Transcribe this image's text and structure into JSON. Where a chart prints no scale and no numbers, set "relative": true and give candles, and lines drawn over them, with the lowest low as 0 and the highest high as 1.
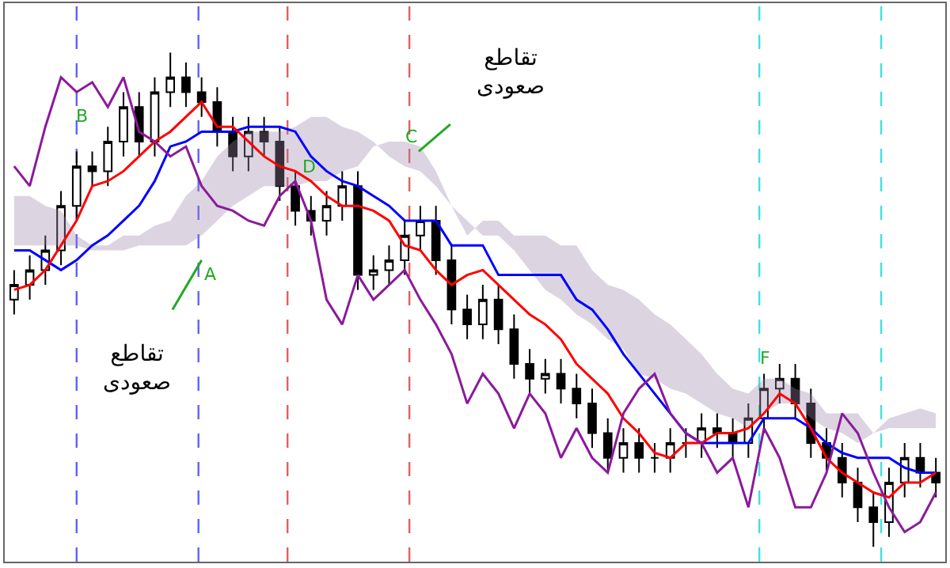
{
  "chart_data": {
    "type": "candlestick",
    "relative": true,
    "color": "#000000",
    "tick_labels": false,
    "categories": [
      null,
      null,
      null,
      null,
      null,
      null,
      null,
      null,
      null,
      null,
      null,
      null,
      null,
      null,
      null,
      null,
      null,
      null,
      null,
      null,
      null,
      null,
      null,
      null,
      null,
      null,
      null,
      null,
      null,
      null,
      null,
      null,
      null,
      null,
      null,
      null,
      null,
      null,
      null,
      null,
      null,
      null,
      null,
      null,
      null,
      null,
      null,
      null,
      null,
      null,
      null,
      null,
      null,
      null,
      null,
      null,
      null,
      null,
      null,
      null
    ],
    "ohlc": [
      [
        0.5,
        0.56,
        0.47,
        0.53
      ],
      [
        0.53,
        0.59,
        0.5,
        0.56
      ],
      [
        0.56,
        0.63,
        0.53,
        0.6
      ],
      [
        0.6,
        0.72,
        0.57,
        0.69
      ],
      [
        0.69,
        0.8,
        0.66,
        0.77
      ],
      [
        0.77,
        0.8,
        0.73,
        0.76
      ],
      [
        0.76,
        0.85,
        0.73,
        0.82
      ],
      [
        0.82,
        0.92,
        0.79,
        0.89
      ],
      [
        0.89,
        0.92,
        0.79,
        0.82
      ],
      [
        0.82,
        0.95,
        0.79,
        0.92
      ],
      [
        0.92,
        1.0,
        0.89,
        0.95
      ],
      [
        0.95,
        0.98,
        0.89,
        0.92
      ],
      [
        0.92,
        0.95,
        0.87,
        0.9
      ],
      [
        0.9,
        0.93,
        0.81,
        0.84
      ],
      [
        0.84,
        0.87,
        0.76,
        0.79
      ],
      [
        0.79,
        0.87,
        0.76,
        0.84
      ],
      [
        0.84,
        0.87,
        0.79,
        0.82
      ],
      [
        0.82,
        0.85,
        0.7,
        0.73
      ],
      [
        0.73,
        0.76,
        0.65,
        0.68
      ],
      [
        0.68,
        0.71,
        0.63,
        0.66
      ],
      [
        0.66,
        0.72,
        0.63,
        0.69
      ],
      [
        0.69,
        0.76,
        0.66,
        0.73
      ],
      [
        0.73,
        0.76,
        0.52,
        0.55
      ],
      [
        0.55,
        0.59,
        0.52,
        0.56
      ],
      [
        0.56,
        0.61,
        0.53,
        0.58
      ],
      [
        0.58,
        0.66,
        0.55,
        0.63
      ],
      [
        0.63,
        0.69,
        0.6,
        0.66
      ],
      [
        0.66,
        0.69,
        0.55,
        0.58
      ],
      [
        0.58,
        0.61,
        0.45,
        0.48
      ],
      [
        0.48,
        0.51,
        0.42,
        0.45
      ],
      [
        0.45,
        0.53,
        0.42,
        0.5
      ],
      [
        0.5,
        0.53,
        0.41,
        0.44
      ],
      [
        0.44,
        0.47,
        0.34,
        0.37
      ],
      [
        0.37,
        0.4,
        0.31,
        0.34
      ],
      [
        0.34,
        0.38,
        0.31,
        0.35
      ],
      [
        0.35,
        0.38,
        0.29,
        0.32
      ],
      [
        0.32,
        0.35,
        0.26,
        0.29
      ],
      [
        0.29,
        0.32,
        0.2,
        0.23
      ],
      [
        0.23,
        0.26,
        0.15,
        0.18
      ],
      [
        0.18,
        0.24,
        0.15,
        0.21
      ],
      [
        0.21,
        0.24,
        0.15,
        0.18
      ],
      [
        0.18,
        0.21,
        0.15,
        0.18
      ],
      [
        0.18,
        0.24,
        0.15,
        0.21
      ],
      [
        0.21,
        0.24,
        0.18,
        0.21
      ],
      [
        0.21,
        0.27,
        0.18,
        0.24
      ],
      [
        0.24,
        0.27,
        0.2,
        0.23
      ],
      [
        0.23,
        0.26,
        0.18,
        0.21
      ],
      [
        0.21,
        0.29,
        0.18,
        0.26
      ],
      [
        0.26,
        0.35,
        0.23,
        0.32
      ],
      [
        0.32,
        0.37,
        0.29,
        0.34
      ],
      [
        0.34,
        0.37,
        0.26,
        0.29
      ],
      [
        0.29,
        0.32,
        0.18,
        0.21
      ],
      [
        0.21,
        0.24,
        0.15,
        0.18
      ],
      [
        0.18,
        0.21,
        0.1,
        0.13
      ],
      [
        0.13,
        0.16,
        0.05,
        0.08
      ],
      [
        0.08,
        0.11,
        0.0,
        0.05
      ],
      [
        0.05,
        0.16,
        0.02,
        0.13
      ],
      [
        0.13,
        0.21,
        0.1,
        0.18
      ],
      [
        0.18,
        0.21,
        0.12,
        0.15
      ],
      [
        0.15,
        0.18,
        0.1,
        0.13
      ]
    ],
    "series": [
      {
        "type": "line",
        "color": "#9a88a8",
        "values": [
          null,
          null,
          null,
          null,
          null,
          null,
          null,
          null,
          null,
          null,
          null,
          null,
          null,
          null,
          null,
          null,
          null,
          null,
          null,
          null,
          null,
          null,
          null,
          null,
          null,
          null,
          null,
          null,
          null,
          null,
          null,
          null,
          null,
          null,
          null,
          null,
          null,
          null,
          null,
          null,
          null,
          null,
          null,
          null,
          null,
          null,
          null,
          null,
          null,
          null,
          null,
          null,
          null,
          null,
          null,
          null,
          null,
          null,
          null,
          null
        ],
        "upper": [
          0.71,
          0.71,
          0.69,
          0.68,
          0.63,
          0.61,
          0.61,
          0.63,
          0.63,
          0.65,
          0.66,
          0.71,
          0.74,
          0.79,
          0.82,
          0.84,
          0.84,
          0.84,
          0.85,
          0.87,
          0.87,
          0.85,
          0.84,
          0.82,
          0.79,
          0.77,
          0.76,
          0.73,
          0.69,
          0.66,
          0.63,
          0.63,
          0.6,
          0.56,
          0.52,
          0.5,
          0.47,
          0.45,
          0.42,
          0.4,
          0.35,
          0.34,
          0.32,
          0.31,
          0.29,
          0.27,
          0.26,
          0.24,
          0.27,
          0.29,
          0.29,
          0.26,
          0.24,
          0.23,
          0.21,
          0.23,
          0.26,
          0.27,
          0.28,
          0.27
        ],
        "lower": [
          0.61,
          0.61,
          0.61,
          0.61,
          0.61,
          0.6,
          0.6,
          0.6,
          0.61,
          0.61,
          0.61,
          0.61,
          0.63,
          0.66,
          0.69,
          0.71,
          0.73,
          0.73,
          0.73,
          0.74,
          0.74,
          0.76,
          0.77,
          0.81,
          0.82,
          0.82,
          0.81,
          0.76,
          0.69,
          0.63,
          0.66,
          0.66,
          0.63,
          0.63,
          0.63,
          0.61,
          0.61,
          0.56,
          0.53,
          0.52,
          0.5,
          0.47,
          0.45,
          0.42,
          0.39,
          0.35,
          0.32,
          0.31,
          0.34,
          0.34,
          0.32,
          0.31,
          0.27,
          0.27,
          0.27,
          0.23,
          0.24,
          0.24,
          0.24,
          0.24
        ]
      },
      {
        "type": "line",
        "color": "#0000ff",
        "values": [
          0.6,
          0.6,
          0.58,
          0.56,
          0.58,
          0.61,
          0.63,
          0.66,
          0.69,
          0.74,
          0.81,
          0.82,
          0.84,
          0.84,
          0.84,
          0.85,
          0.85,
          0.85,
          0.84,
          0.79,
          0.76,
          0.74,
          0.73,
          0.71,
          0.69,
          0.66,
          0.66,
          0.66,
          0.61,
          0.61,
          0.61,
          0.55,
          0.55,
          0.55,
          0.55,
          0.55,
          0.5,
          0.48,
          0.44,
          0.39,
          0.35,
          0.31,
          0.27,
          0.23,
          0.21,
          0.21,
          0.21,
          0.21,
          0.26,
          0.26,
          0.26,
          0.24,
          0.21,
          0.19,
          0.18,
          0.18,
          0.18,
          0.16,
          0.15,
          0.15
        ]
      },
      {
        "type": "line",
        "color": "#ff0000",
        "values": [
          0.52,
          0.53,
          0.56,
          0.61,
          0.66,
          0.73,
          0.74,
          0.76,
          0.79,
          0.82,
          0.84,
          0.87,
          0.9,
          0.85,
          0.85,
          0.82,
          0.79,
          0.77,
          0.76,
          0.74,
          0.71,
          0.69,
          0.69,
          0.68,
          0.66,
          0.61,
          0.6,
          0.56,
          0.53,
          0.55,
          0.56,
          0.53,
          0.5,
          0.47,
          0.45,
          0.42,
          0.37,
          0.34,
          0.31,
          0.26,
          0.23,
          0.19,
          0.18,
          0.21,
          0.21,
          0.23,
          0.23,
          0.24,
          0.27,
          0.31,
          0.29,
          0.24,
          0.18,
          0.15,
          0.13,
          0.11,
          0.1,
          0.13,
          0.13,
          0.15
        ]
      },
      {
        "type": "line",
        "color": "#8b1a9b",
        "values": [
          0.77,
          0.73,
          0.85,
          0.95,
          0.92,
          0.94,
          0.89,
          0.95,
          0.84,
          0.82,
          0.79,
          0.81,
          0.73,
          0.69,
          0.68,
          0.66,
          0.65,
          0.71,
          0.74,
          0.66,
          0.5,
          0.45,
          0.55,
          0.5,
          0.53,
          0.56,
          0.5,
          0.45,
          0.39,
          0.29,
          0.35,
          0.31,
          0.24,
          0.31,
          0.27,
          0.18,
          0.24,
          0.18,
          0.15,
          0.27,
          0.32,
          0.35,
          0.27,
          0.23,
          0.21,
          0.15,
          0.18,
          0.08,
          0.24,
          0.18,
          0.08,
          0.08,
          0.15,
          0.27,
          0.23,
          0.15,
          0.08,
          0.03,
          0.05,
          0.11
        ]
      }
    ],
    "annotations": [
      "A",
      "B",
      "C",
      "D",
      "F",
      "تقاطع\nصعودی",
      "تقاطع\nصعودی"
    ]
  }
}
